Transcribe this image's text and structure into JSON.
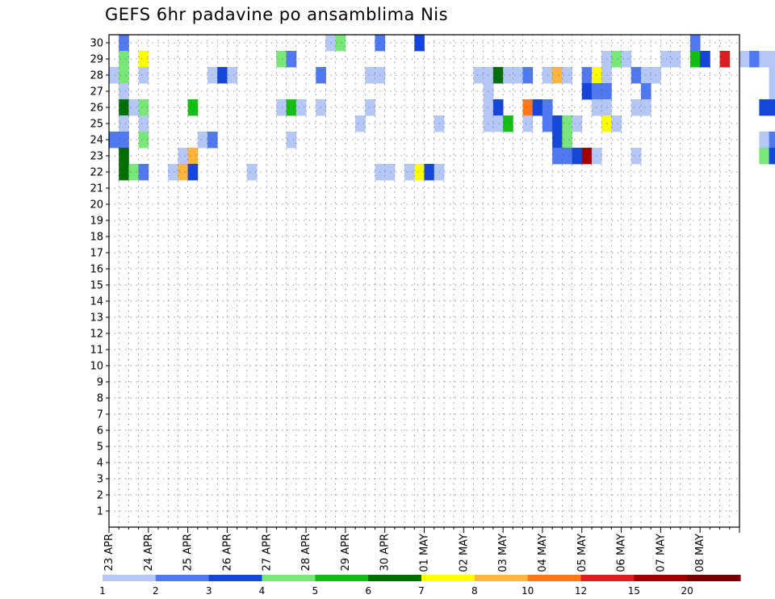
{
  "chart_data": {
    "type": "heatmap",
    "title": "GEFS 6hr padavine po ansamblima Nis",
    "y_range": [
      0,
      30
    ],
    "y_ticks": [
      "1",
      "2",
      "3",
      "4",
      "5",
      "6",
      "7",
      "8",
      "9",
      "10",
      "11",
      "12",
      "13",
      "14",
      "15",
      "16",
      "17",
      "18",
      "19",
      "20",
      "21",
      "22",
      "23",
      "24",
      "25",
      "26",
      "27",
      "28",
      "29",
      "30"
    ],
    "x_steps_per_day": 4,
    "x_day_count": 16,
    "x_tick_labels": [
      "23 APR",
      "24 APR",
      "25 APR",
      "26 APR",
      "27 APR",
      "28 APR",
      "29 APR",
      "30 APR",
      "01 MAY",
      "02 MAY",
      "03 MAY",
      "04 MAY",
      "05 MAY",
      "06 MAY",
      "07 MAY",
      "08 MAY"
    ],
    "grid": true,
    "legend_position": "bottom",
    "legend_levels": [
      "1",
      "2",
      "3",
      "4",
      "5",
      "6",
      "7",
      "8",
      "10",
      "12",
      "15",
      "20"
    ],
    "legend_colors": [
      "#b4c8f8",
      "#5078f0",
      "#1446dc",
      "#78e678",
      "#14be14",
      "#006e00",
      "#ffff00",
      "#ffb43c",
      "#ff7814",
      "#dc1e1e",
      "#a00000",
      "#780000"
    ],
    "cells_format": "member, time step (6-hourly, 0 = 23 APR 00Z), color class index",
    "cells": [
      [
        30,
        1,
        1
      ],
      [
        30,
        22,
        0
      ],
      [
        30,
        23,
        3
      ],
      [
        30,
        27,
        1
      ],
      [
        30,
        31,
        2
      ],
      [
        30,
        59,
        1
      ],
      [
        29,
        1,
        3
      ],
      [
        29,
        3,
        6
      ],
      [
        29,
        17,
        3
      ],
      [
        29,
        18,
        1
      ],
      [
        29,
        50,
        0
      ],
      [
        29,
        51,
        3
      ],
      [
        29,
        52,
        0
      ],
      [
        29,
        56,
        0
      ],
      [
        29,
        57,
        0
      ],
      [
        29,
        59,
        4
      ],
      [
        29,
        60,
        2
      ],
      [
        29,
        62,
        9
      ],
      [
        29,
        64,
        0
      ],
      [
        29,
        65,
        1
      ],
      [
        29,
        66,
        0
      ],
      [
        29,
        67,
        0
      ],
      [
        28,
        0,
        0
      ],
      [
        28,
        1,
        3
      ],
      [
        28,
        3,
        0
      ],
      [
        28,
        10,
        0
      ],
      [
        28,
        11,
        2
      ],
      [
        28,
        12,
        0
      ],
      [
        28,
        21,
        1
      ],
      [
        28,
        26,
        0
      ],
      [
        28,
        27,
        0
      ],
      [
        28,
        37,
        0
      ],
      [
        28,
        38,
        0
      ],
      [
        28,
        39,
        5
      ],
      [
        28,
        40,
        0
      ],
      [
        28,
        41,
        0
      ],
      [
        28,
        42,
        1
      ],
      [
        28,
        44,
        0
      ],
      [
        28,
        45,
        7
      ],
      [
        28,
        46,
        0
      ],
      [
        28,
        48,
        1
      ],
      [
        28,
        49,
        6
      ],
      [
        28,
        50,
        0
      ],
      [
        28,
        53,
        1
      ],
      [
        28,
        54,
        0
      ],
      [
        28,
        55,
        0
      ],
      [
        28,
        67,
        0
      ],
      [
        27,
        1,
        0
      ],
      [
        27,
        38,
        0
      ],
      [
        27,
        48,
        2
      ],
      [
        27,
        49,
        1
      ],
      [
        27,
        50,
        1
      ],
      [
        27,
        54,
        1
      ],
      [
        27,
        67,
        0
      ],
      [
        26,
        1,
        5
      ],
      [
        26,
        2,
        0
      ],
      [
        26,
        3,
        3
      ],
      [
        26,
        8,
        4
      ],
      [
        26,
        17,
        0
      ],
      [
        26,
        18,
        4
      ],
      [
        26,
        19,
        0
      ],
      [
        26,
        21,
        0
      ],
      [
        26,
        26,
        0
      ],
      [
        26,
        38,
        0
      ],
      [
        26,
        39,
        2
      ],
      [
        26,
        42,
        8
      ],
      [
        26,
        43,
        2
      ],
      [
        26,
        44,
        1
      ],
      [
        26,
        49,
        0
      ],
      [
        26,
        50,
        0
      ],
      [
        26,
        53,
        0
      ],
      [
        26,
        54,
        0
      ],
      [
        26,
        66,
        2
      ],
      [
        26,
        67,
        2
      ],
      [
        25,
        1,
        0
      ],
      [
        25,
        3,
        0
      ],
      [
        25,
        25,
        0
      ],
      [
        25,
        33,
        0
      ],
      [
        25,
        38,
        0
      ],
      [
        25,
        39,
        0
      ],
      [
        25,
        40,
        4
      ],
      [
        25,
        42,
        0
      ],
      [
        25,
        44,
        1
      ],
      [
        25,
        45,
        2
      ],
      [
        25,
        46,
        3
      ],
      [
        25,
        47,
        0
      ],
      [
        25,
        50,
        6
      ],
      [
        25,
        51,
        0
      ],
      [
        24,
        0,
        1
      ],
      [
        24,
        1,
        1
      ],
      [
        24,
        3,
        3
      ],
      [
        24,
        9,
        0
      ],
      [
        24,
        10,
        1
      ],
      [
        24,
        18,
        0
      ],
      [
        24,
        45,
        2
      ],
      [
        24,
        46,
        3
      ],
      [
        24,
        66,
        0
      ],
      [
        24,
        67,
        1
      ],
      [
        23,
        1,
        5
      ],
      [
        23,
        7,
        0
      ],
      [
        23,
        8,
        7
      ],
      [
        23,
        45,
        1
      ],
      [
        23,
        46,
        1
      ],
      [
        23,
        47,
        2
      ],
      [
        23,
        48,
        10
      ],
      [
        23,
        49,
        0
      ],
      [
        23,
        53,
        0
      ],
      [
        23,
        66,
        3
      ],
      [
        23,
        67,
        2
      ],
      [
        22,
        1,
        5
      ],
      [
        22,
        2,
        3
      ],
      [
        22,
        3,
        1
      ],
      [
        22,
        6,
        0
      ],
      [
        22,
        7,
        7
      ],
      [
        22,
        8,
        2
      ],
      [
        22,
        14,
        0
      ],
      [
        22,
        27,
        0
      ],
      [
        22,
        28,
        0
      ],
      [
        22,
        30,
        0
      ],
      [
        22,
        31,
        6
      ],
      [
        22,
        32,
        2
      ],
      [
        22,
        33,
        0
      ]
    ]
  }
}
